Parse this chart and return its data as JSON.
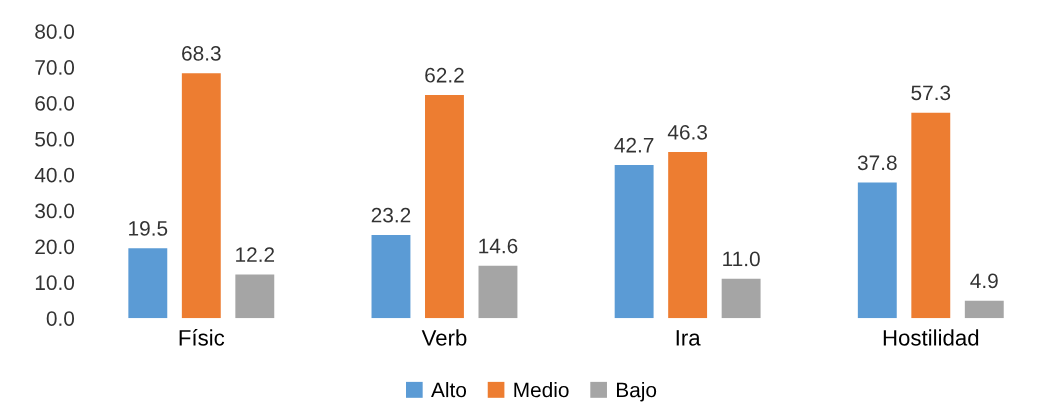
{
  "chart_data": {
    "type": "bar",
    "categories": [
      "Físic",
      "Verb",
      "Ira",
      "Hostilidad"
    ],
    "series": [
      {
        "name": "Alto",
        "color": "#5b9bd5",
        "values": [
          19.5,
          23.2,
          42.7,
          37.8
        ],
        "value_labels": [
          "19.5",
          "23.2",
          "42.7",
          "37.8"
        ]
      },
      {
        "name": "Medio",
        "color": "#ed7d31",
        "values": [
          68.3,
          62.2,
          46.3,
          57.3
        ],
        "value_labels": [
          "68.3",
          "62.2",
          "46.3",
          "57.3"
        ]
      },
      {
        "name": "Bajo",
        "color": "#a5a5a5",
        "values": [
          12.2,
          14.6,
          11.0,
          4.9
        ],
        "value_labels": [
          "12.2",
          "14.6",
          "11.0",
          "4.9"
        ]
      }
    ],
    "ylim": [
      0,
      80
    ],
    "yticks": [
      {
        "value": 0,
        "label": "0.0"
      },
      {
        "value": 10,
        "label": "10.0"
      },
      {
        "value": 20,
        "label": "20.0"
      },
      {
        "value": 30,
        "label": "30.0"
      },
      {
        "value": 40,
        "label": "40.0"
      },
      {
        "value": 50,
        "label": "50.0"
      },
      {
        "value": 60,
        "label": "60.0"
      },
      {
        "value": 70,
        "label": "70.0"
      },
      {
        "value": 80,
        "label": "80.0"
      }
    ],
    "grid": false,
    "legend": "bottom"
  }
}
